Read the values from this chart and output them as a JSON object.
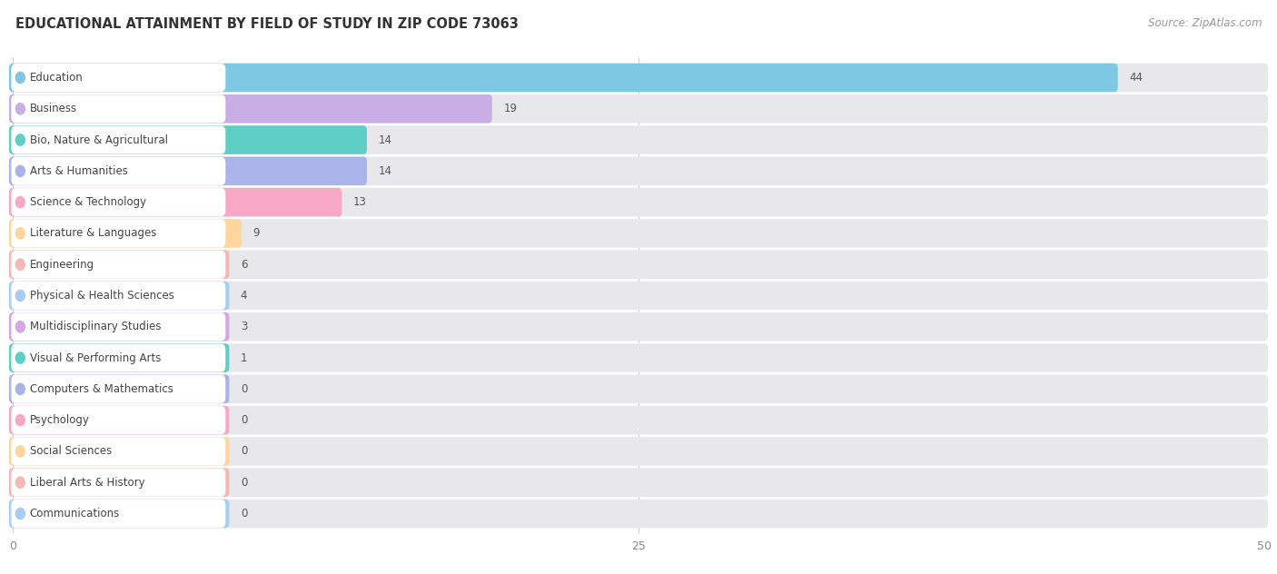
{
  "title": "EDUCATIONAL ATTAINMENT BY FIELD OF STUDY IN ZIP CODE 73063",
  "source": "Source: ZipAtlas.com",
  "categories": [
    "Education",
    "Business",
    "Bio, Nature & Agricultural",
    "Arts & Humanities",
    "Science & Technology",
    "Literature & Languages",
    "Engineering",
    "Physical & Health Sciences",
    "Multidisciplinary Studies",
    "Visual & Performing Arts",
    "Computers & Mathematics",
    "Psychology",
    "Social Sciences",
    "Liberal Arts & History",
    "Communications"
  ],
  "values": [
    44,
    19,
    14,
    14,
    13,
    9,
    6,
    4,
    3,
    1,
    0,
    0,
    0,
    0,
    0
  ],
  "bar_colors": [
    "#7ec8e3",
    "#c9aee5",
    "#5ecfc4",
    "#aab4ea",
    "#f7a8c4",
    "#ffd59e",
    "#f5b8b8",
    "#a8cef5",
    "#d4a8e8",
    "#5ecfc4",
    "#aab4ea",
    "#f7a8c4",
    "#ffd59e",
    "#f5b8b8",
    "#a8cef5"
  ],
  "dot_colors": [
    "#7ec8e3",
    "#c9aee5",
    "#5ecfc4",
    "#aab4ea",
    "#f7a8c4",
    "#ffd59e",
    "#f5b8b8",
    "#a8cef5",
    "#d4a8e8",
    "#5ecfc4",
    "#aab4ea",
    "#f7a8c4",
    "#ffd59e",
    "#f5b8b8",
    "#a8cef5"
  ],
  "xlim": [
    0,
    50
  ],
  "xticks": [
    0,
    25,
    50
  ],
  "background_color": "#ffffff",
  "bar_bg_color": "#e8e8ec",
  "title_fontsize": 10.5,
  "source_fontsize": 8.5,
  "label_fontsize": 8.5,
  "value_fontsize": 8.5
}
